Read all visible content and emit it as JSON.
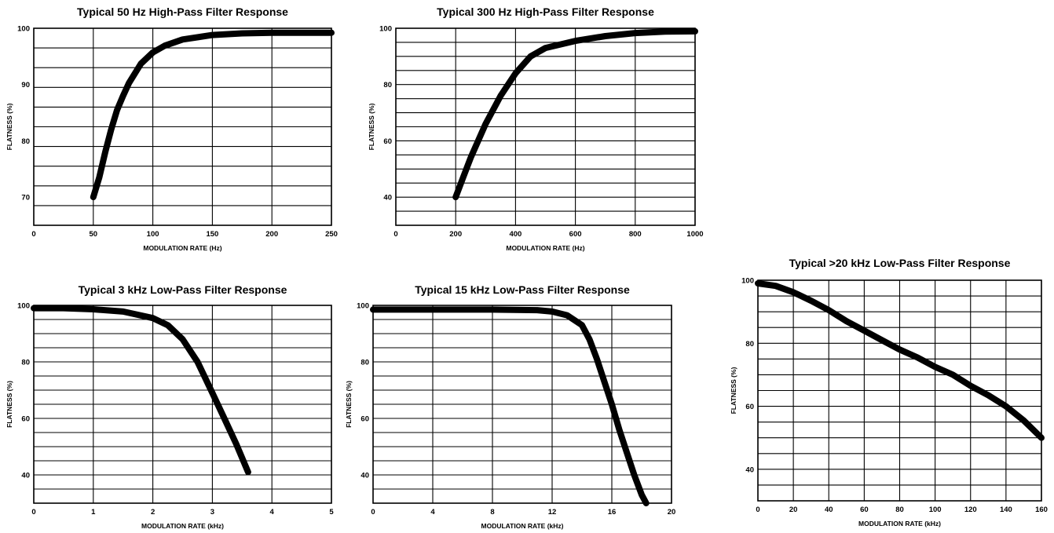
{
  "chart_data": [
    {
      "id": "hp50",
      "type": "line",
      "title": "Typical 50 Hz High-Pass Filter Response",
      "xlabel": "MODULATION RATE (Hz)",
      "ylabel": "FLATNESS (%)",
      "xlim": [
        0,
        250
      ],
      "ylim": [
        65,
        100
      ],
      "xticks": [
        0,
        50,
        100,
        150,
        200,
        250
      ],
      "xtick_labels": [
        "0",
        "50",
        "100",
        "150",
        "200",
        "250"
      ],
      "yticks": [
        70,
        80,
        90,
        100
      ],
      "ytick_labels": [
        "70",
        "80",
        "90",
        "100"
      ],
      "grid": true,
      "series": [
        {
          "x": [
            50,
            55,
            60,
            65,
            70,
            75,
            80,
            90,
            100,
            110,
            125,
            150,
            175,
            200,
            225,
            250
          ],
          "y": [
            70,
            73.5,
            78,
            82,
            85.5,
            88,
            90.3,
            93.7,
            95.7,
            96.9,
            98,
            98.8,
            99.1,
            99.2,
            99.2,
            99.2
          ]
        }
      ]
    },
    {
      "id": "hp300",
      "type": "line",
      "title": "Typical 300 Hz High-Pass Filter Response",
      "xlabel": "MODULATION RATE (Hz)",
      "ylabel": "FLATNESS (%)",
      "xlim": [
        0,
        1000
      ],
      "ylim": [
        30,
        100
      ],
      "xticks": [
        0,
        200,
        400,
        600,
        800,
        1000
      ],
      "xtick_labels": [
        "0",
        "200",
        "400",
        "600",
        "800",
        "1000"
      ],
      "yticks": [
        40,
        60,
        80,
        100
      ],
      "ytick_labels": [
        "40",
        "60",
        "80",
        "100"
      ],
      "grid": true,
      "series": [
        {
          "x": [
            200,
            225,
            250,
            275,
            300,
            350,
            400,
            450,
            500,
            600,
            700,
            800,
            900,
            1000
          ],
          "y": [
            40,
            47,
            54,
            60,
            66,
            76,
            84,
            90,
            93,
            95.5,
            97.2,
            98.3,
            98.8,
            98.9
          ]
        }
      ]
    },
    {
      "id": "lp3k",
      "type": "line",
      "title": "Typical 3 kHz Low-Pass Filter Response",
      "xlabel": "MODULATION RATE (kHz)",
      "ylabel": "FLATNESS (%)",
      "xlim": [
        0,
        5
      ],
      "ylim": [
        30,
        100
      ],
      "xticks": [
        0,
        1,
        2,
        3,
        4,
        5
      ],
      "xtick_labels": [
        "0",
        "1",
        "2",
        "3",
        "4",
        "5"
      ],
      "yticks": [
        40,
        60,
        80,
        100
      ],
      "ytick_labels": [
        "40",
        "60",
        "80",
        "100"
      ],
      "grid": true,
      "series": [
        {
          "x": [
            0,
            0.5,
            1.0,
            1.5,
            2.0,
            2.25,
            2.5,
            2.75,
            3.0,
            3.2,
            3.4,
            3.6
          ],
          "y": [
            99,
            99,
            98.6,
            97.8,
            95.5,
            93,
            88,
            80,
            69,
            60,
            51,
            41
          ]
        }
      ]
    },
    {
      "id": "lp15k",
      "type": "line",
      "title": "Typical 15 kHz Low-Pass Filter Response",
      "xlabel": "MODULATION RATE (kHz)",
      "ylabel": "FLATNESS (%)",
      "xlim": [
        0,
        20
      ],
      "ylim": [
        30,
        100
      ],
      "xticks": [
        0,
        4,
        8,
        12,
        16,
        20
      ],
      "xtick_labels": [
        "0",
        "4",
        "8",
        "12",
        "16",
        "20"
      ],
      "yticks": [
        40,
        60,
        80,
        100
      ],
      "ytick_labels": [
        "40",
        "60",
        "80",
        "100"
      ],
      "grid": true,
      "series": [
        {
          "x": [
            0,
            4,
            8,
            11,
            12,
            13,
            14,
            14.5,
            15,
            15.5,
            16,
            16.5,
            17,
            17.5,
            18,
            18.3
          ],
          "y": [
            98.5,
            98.5,
            98.5,
            98.3,
            97.8,
            96.5,
            93,
            88,
            81,
            73,
            65,
            56,
            48,
            40,
            33,
            30
          ]
        }
      ]
    },
    {
      "id": "lp20k",
      "type": "line",
      "title": "Typical >20 kHz Low-Pass Filter Response",
      "xlabel": "MODULATION RATE (kHz)",
      "ylabel": "FLATNESS (%)",
      "xlim": [
        0,
        160
      ],
      "ylim": [
        30,
        100
      ],
      "xticks": [
        0,
        20,
        40,
        60,
        80,
        100,
        120,
        140,
        160
      ],
      "xtick_labels": [
        "0",
        "20",
        "40",
        "60",
        "80",
        "100",
        "120",
        "140",
        "160"
      ],
      "yticks": [
        40,
        60,
        80,
        100
      ],
      "ytick_labels": [
        "40",
        "60",
        "80",
        "100"
      ],
      "grid": true,
      "series": [
        {
          "x": [
            0,
            10,
            20,
            30,
            40,
            50,
            60,
            70,
            80,
            90,
            100,
            110,
            120,
            130,
            140,
            150,
            160
          ],
          "y": [
            99,
            98.2,
            96.2,
            93.5,
            90.5,
            87,
            84,
            81,
            78,
            75.5,
            72.5,
            70,
            66.5,
            63.5,
            60,
            55.5,
            50
          ]
        }
      ]
    }
  ]
}
